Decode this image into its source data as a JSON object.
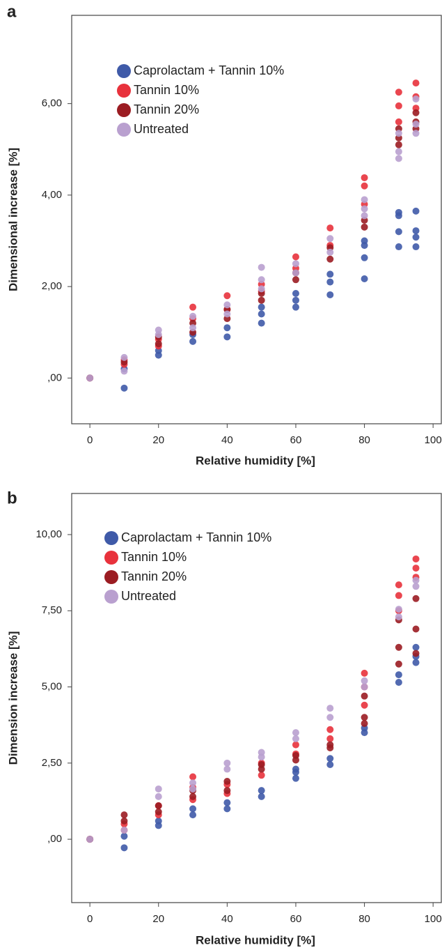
{
  "chart_data": [
    {
      "type": "scatter",
      "panel": "a",
      "x_label": "Relative humidity [%]",
      "y_label": "Dimensional increase [%]",
      "xlim": [
        -5.3,
        102.6
      ],
      "ylim": [
        -1.0,
        7.93
      ],
      "xticks": [
        0,
        20,
        40,
        60,
        80,
        100
      ],
      "yticks": [
        {
          "value": 0,
          "label": ",00"
        },
        {
          "value": 2,
          "label": "2,00"
        },
        {
          "value": 4,
          "label": "4,00"
        },
        {
          "value": 6,
          "label": "6,00"
        }
      ],
      "legend": "upper left",
      "series": [
        {
          "name": "Caprolactam + Tannin 10%",
          "color": "#3f5aa8",
          "x": [
            0,
            10,
            10,
            20,
            20,
            30,
            30,
            40,
            40,
            50,
            50,
            50,
            60,
            60,
            60,
            70,
            70,
            70,
            80,
            80,
            80,
            80,
            90,
            90,
            90,
            90,
            95,
            95,
            95,
            95
          ],
          "y": [
            0,
            -0.22,
            0.2,
            0.5,
            0.6,
            0.8,
            0.95,
            0.9,
            1.1,
            1.2,
            1.4,
            1.55,
            1.55,
            1.7,
            1.85,
            1.82,
            2.1,
            2.27,
            2.17,
            2.63,
            2.9,
            3.0,
            2.87,
            3.2,
            3.55,
            3.62,
            2.87,
            3.08,
            3.22,
            3.65
          ]
        },
        {
          "name": "Tannin 10%",
          "color": "#e8323c",
          "x": [
            0,
            10,
            10,
            20,
            20,
            30,
            30,
            40,
            40,
            50,
            50,
            60,
            60,
            70,
            70,
            80,
            80,
            80,
            90,
            90,
            90,
            95,
            95,
            95
          ],
          "y": [
            0,
            0.3,
            0.4,
            0.7,
            0.85,
            1.3,
            1.55,
            1.5,
            1.8,
            1.9,
            2.05,
            2.4,
            2.65,
            2.9,
            3.28,
            3.8,
            4.2,
            4.38,
            5.6,
            5.95,
            6.25,
            5.9,
            6.15,
            6.45
          ]
        },
        {
          "name": "Tannin 20%",
          "color": "#9b1c22",
          "x": [
            0,
            10,
            20,
            20,
            30,
            30,
            40,
            40,
            50,
            50,
            60,
            60,
            70,
            70,
            80,
            80,
            90,
            90,
            90,
            95,
            95,
            95
          ],
          "y": [
            0,
            0.35,
            0.75,
            0.9,
            1.0,
            1.2,
            1.3,
            1.5,
            1.7,
            1.85,
            2.15,
            2.3,
            2.6,
            2.85,
            3.3,
            3.45,
            5.1,
            5.25,
            5.45,
            5.45,
            5.6,
            5.8
          ]
        },
        {
          "name": "Untreated",
          "color": "#b9a0cf",
          "x": [
            0,
            10,
            10,
            20,
            20,
            30,
            30,
            40,
            40,
            50,
            50,
            50,
            60,
            60,
            70,
            70,
            80,
            80,
            80,
            90,
            90,
            90,
            95,
            95,
            95
          ],
          "y": [
            0,
            0.15,
            0.45,
            0.95,
            1.05,
            1.1,
            1.35,
            1.4,
            1.6,
            1.95,
            2.15,
            2.42,
            2.3,
            2.5,
            2.75,
            3.05,
            3.55,
            3.7,
            3.9,
            4.8,
            4.95,
            5.35,
            5.35,
            5.55,
            6.1
          ]
        }
      ]
    },
    {
      "type": "scatter",
      "panel": "b",
      "x_label": "Relative humidity [%]",
      "y_label": "Dimension increase [%]",
      "xlim": [
        -5.3,
        102.6
      ],
      "ylim": [
        -2.08,
        11.35
      ],
      "xticks": [
        0,
        20,
        40,
        60,
        80,
        100
      ],
      "yticks": [
        {
          "value": 0,
          "label": ",00"
        },
        {
          "value": 2.5,
          "label": "2,50"
        },
        {
          "value": 5,
          "label": "5,00"
        },
        {
          "value": 7.5,
          "label": "7,50"
        },
        {
          "value": 10,
          "label": "10,00"
        }
      ],
      "legend": "upper left",
      "series": [
        {
          "name": "Caprolactam + Tannin 10%",
          "color": "#3f5aa8",
          "x": [
            0,
            10,
            10,
            20,
            20,
            30,
            30,
            40,
            40,
            50,
            50,
            60,
            60,
            60,
            70,
            70,
            80,
            80,
            90,
            90,
            95,
            95,
            95
          ],
          "y": [
            0,
            -0.28,
            0.1,
            0.45,
            0.6,
            0.8,
            1.0,
            1.0,
            1.2,
            1.4,
            1.6,
            2.0,
            2.2,
            2.3,
            2.45,
            2.65,
            3.5,
            3.65,
            5.15,
            5.4,
            5.8,
            6.0,
            6.3
          ]
        },
        {
          "name": "Tannin 10%",
          "color": "#e8323c",
          "x": [
            0,
            10,
            10,
            20,
            20,
            30,
            30,
            30,
            40,
            40,
            50,
            50,
            60,
            60,
            70,
            70,
            80,
            80,
            80,
            90,
            90,
            90,
            95,
            95,
            95
          ],
          "y": [
            0,
            0.3,
            0.5,
            0.8,
            1.1,
            1.3,
            1.7,
            2.05,
            1.5,
            1.8,
            2.1,
            2.5,
            2.8,
            3.1,
            3.3,
            3.6,
            4.4,
            5.0,
            5.45,
            7.5,
            8.0,
            8.35,
            8.6,
            9.2,
            8.9
          ]
        },
        {
          "name": "Tannin 20%",
          "color": "#9b1c22",
          "x": [
            0,
            10,
            10,
            20,
            20,
            30,
            30,
            40,
            40,
            50,
            50,
            60,
            60,
            70,
            70,
            80,
            80,
            80,
            90,
            90,
            90,
            95,
            95,
            95
          ],
          "y": [
            0,
            0.8,
            0.6,
            0.9,
            1.1,
            1.4,
            1.6,
            1.6,
            1.9,
            2.3,
            2.45,
            2.6,
            2.75,
            3.0,
            3.1,
            3.8,
            4.0,
            4.7,
            5.75,
            6.3,
            7.2,
            6.1,
            6.9,
            7.9
          ]
        },
        {
          "name": "Untreated",
          "color": "#b9a0cf",
          "x": [
            0,
            10,
            20,
            20,
            30,
            30,
            40,
            40,
            50,
            50,
            60,
            60,
            70,
            70,
            80,
            80,
            90,
            90,
            95,
            95
          ],
          "y": [
            0,
            0.3,
            1.4,
            1.65,
            1.65,
            1.85,
            2.3,
            2.5,
            2.7,
            2.85,
            3.3,
            3.5,
            4.0,
            4.3,
            5.0,
            5.2,
            7.3,
            7.55,
            8.3,
            8.5
          ]
        }
      ]
    }
  ]
}
